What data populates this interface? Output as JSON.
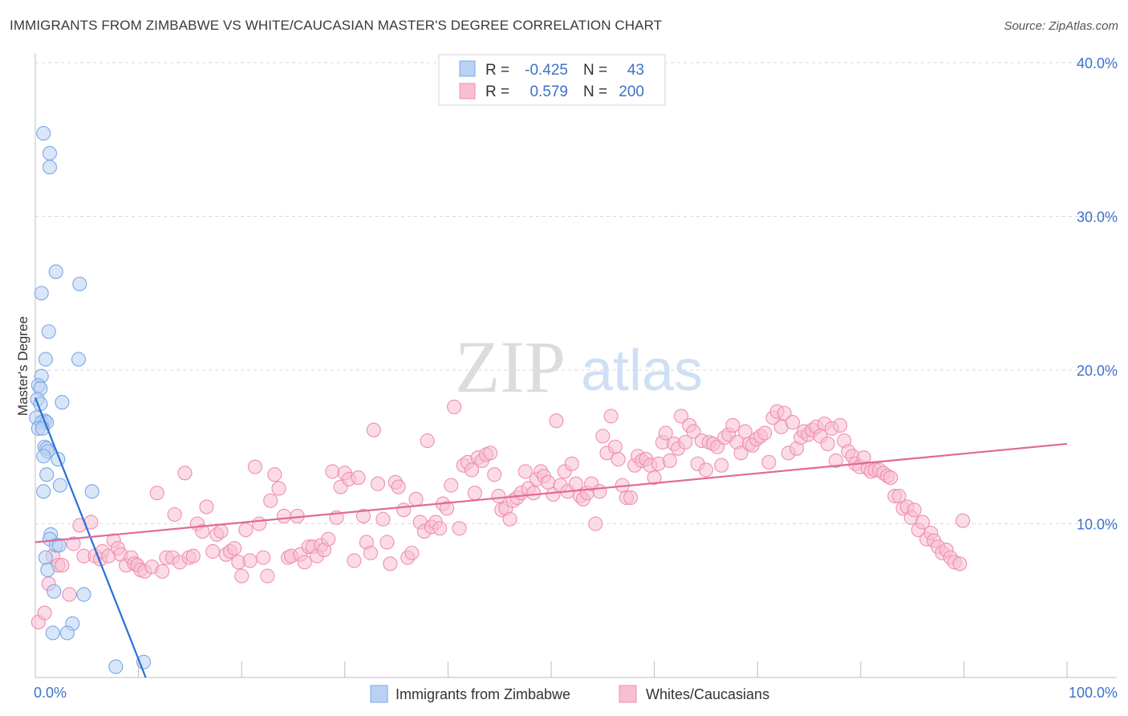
{
  "title": "IMMIGRANTS FROM ZIMBABWE VS WHITE/CAUCASIAN MASTER'S DEGREE CORRELATION CHART",
  "source": "Source: ZipAtlas.com",
  "watermark": {
    "zip": "ZIP",
    "atlas": "atlas"
  },
  "colors": {
    "blue": "#7aa7e8",
    "blue_fill": "#b9d2f3",
    "blue_line": "#2a6fd6",
    "pink": "#ef8fb0",
    "pink_fill": "#f7bfd1",
    "pink_line": "#e0699a",
    "axis_label": "#3c72c9",
    "grid": "#d9d9d9"
  },
  "legend": {
    "r_label": "R =",
    "n_label": "N =",
    "rows": [
      {
        "r": "-0.425",
        "n": "43"
      },
      {
        "r": "0.579",
        "n": "200"
      }
    ]
  },
  "chart_data": {
    "type": "scatter",
    "xlabel": "",
    "ylabel": "Master's Degree",
    "xlim": [
      0,
      100
    ],
    "ylim": [
      0,
      40
    ],
    "x_tick_labels": [
      "0.0%",
      "100.0%"
    ],
    "y_ticks": [
      10,
      20,
      30,
      40
    ],
    "y_tick_labels": [
      "10.0%",
      "20.0%",
      "30.0%",
      "40.0%"
    ],
    "series": [
      {
        "name": "Immigrants from Zimbabwe",
        "color": "blue",
        "r": -0.425,
        "n": 43,
        "trend": {
          "x": [
            0,
            10.7
          ],
          "y": [
            18.2,
            0
          ]
        },
        "points": [
          [
            0.8,
            35.4
          ],
          [
            1.4,
            34.1
          ],
          [
            1.4,
            33.2
          ],
          [
            2.0,
            26.4
          ],
          [
            4.3,
            25.6
          ],
          [
            0.6,
            25.0
          ],
          [
            1.3,
            22.5
          ],
          [
            1.0,
            20.7
          ],
          [
            4.2,
            20.7
          ],
          [
            0.6,
            19.6
          ],
          [
            0.3,
            19.0
          ],
          [
            0.5,
            18.8
          ],
          [
            0.2,
            18.1
          ],
          [
            2.6,
            17.9
          ],
          [
            0.5,
            17.8
          ],
          [
            0.1,
            16.9
          ],
          [
            0.9,
            16.7
          ],
          [
            0.6,
            16.6
          ],
          [
            1.1,
            16.6
          ],
          [
            0.3,
            16.2
          ],
          [
            0.7,
            16.2
          ],
          [
            0.9,
            15.0
          ],
          [
            1.1,
            14.9
          ],
          [
            1.2,
            14.7
          ],
          [
            0.8,
            14.4
          ],
          [
            2.2,
            14.2
          ],
          [
            1.1,
            13.2
          ],
          [
            2.4,
            12.5
          ],
          [
            0.8,
            12.1
          ],
          [
            5.5,
            12.1
          ],
          [
            1.5,
            9.3
          ],
          [
            1.4,
            9.0
          ],
          [
            2.0,
            8.6
          ],
          [
            2.3,
            8.6
          ],
          [
            1.0,
            7.8
          ],
          [
            1.2,
            7.0
          ],
          [
            1.8,
            5.6
          ],
          [
            4.7,
            5.4
          ],
          [
            3.6,
            3.5
          ],
          [
            1.7,
            2.9
          ],
          [
            3.1,
            2.9
          ],
          [
            7.8,
            0.7
          ],
          [
            10.5,
            1.0
          ]
        ]
      },
      {
        "name": "Whites/Caucasians",
        "color": "pink",
        "r": 0.579,
        "n": 200,
        "trend": {
          "x": [
            0,
            100
          ],
          "y": [
            8.8,
            15.2
          ]
        },
        "points": [
          [
            0.3,
            3.6
          ],
          [
            0.9,
            4.2
          ],
          [
            1.3,
            6.1
          ],
          [
            1.7,
            7.9
          ],
          [
            2.2,
            7.3
          ],
          [
            2.6,
            7.3
          ],
          [
            3.3,
            5.4
          ],
          [
            3.7,
            8.7
          ],
          [
            4.3,
            9.9
          ],
          [
            4.7,
            7.9
          ],
          [
            5.4,
            10.1
          ],
          [
            5.8,
            7.9
          ],
          [
            6.3,
            7.7
          ],
          [
            6.5,
            8.2
          ],
          [
            7.1,
            7.9
          ],
          [
            7.6,
            8.9
          ],
          [
            8.0,
            8.4
          ],
          [
            8.3,
            8.0
          ],
          [
            8.8,
            7.3
          ],
          [
            9.3,
            7.8
          ],
          [
            9.6,
            7.4
          ],
          [
            9.9,
            7.3
          ],
          [
            10.2,
            7.0
          ],
          [
            10.6,
            6.9
          ],
          [
            11.3,
            7.2
          ],
          [
            11.8,
            12.0
          ],
          [
            12.3,
            6.9
          ],
          [
            12.7,
            7.8
          ],
          [
            13.3,
            7.8
          ],
          [
            13.5,
            10.6
          ],
          [
            14.0,
            7.5
          ],
          [
            14.5,
            13.3
          ],
          [
            14.9,
            7.8
          ],
          [
            15.3,
            7.9
          ],
          [
            15.7,
            10.0
          ],
          [
            16.2,
            9.5
          ],
          [
            16.6,
            11.1
          ],
          [
            17.2,
            8.2
          ],
          [
            17.6,
            9.3
          ],
          [
            18.0,
            9.5
          ],
          [
            18.5,
            8.0
          ],
          [
            18.9,
            8.2
          ],
          [
            19.3,
            8.4
          ],
          [
            19.7,
            7.5
          ],
          [
            20.0,
            6.6
          ],
          [
            20.4,
            9.6
          ],
          [
            20.8,
            7.6
          ],
          [
            21.3,
            13.7
          ],
          [
            21.7,
            10.0
          ],
          [
            22.1,
            7.8
          ],
          [
            22.5,
            6.6
          ],
          [
            22.8,
            11.5
          ],
          [
            23.2,
            13.2
          ],
          [
            23.6,
            12.3
          ],
          [
            24.1,
            10.5
          ],
          [
            24.5,
            7.8
          ],
          [
            24.8,
            7.9
          ],
          [
            25.4,
            10.5
          ],
          [
            25.7,
            8.0
          ],
          [
            26.1,
            7.5
          ],
          [
            26.5,
            8.5
          ],
          [
            26.9,
            8.5
          ],
          [
            27.3,
            7.9
          ],
          [
            27.7,
            8.6
          ],
          [
            28.0,
            8.3
          ],
          [
            28.4,
            9.0
          ],
          [
            28.8,
            13.4
          ],
          [
            29.2,
            10.4
          ],
          [
            29.6,
            12.4
          ],
          [
            30.0,
            13.3
          ],
          [
            30.4,
            12.9
          ],
          [
            30.9,
            7.6
          ],
          [
            31.3,
            13.0
          ],
          [
            31.8,
            10.5
          ],
          [
            32.1,
            8.8
          ],
          [
            32.5,
            8.1
          ],
          [
            32.8,
            16.1
          ],
          [
            33.2,
            12.6
          ],
          [
            33.7,
            10.3
          ],
          [
            34.1,
            8.8
          ],
          [
            34.4,
            7.4
          ],
          [
            34.9,
            12.7
          ],
          [
            35.2,
            12.4
          ],
          [
            35.7,
            10.9
          ],
          [
            36.1,
            7.8
          ],
          [
            36.5,
            8.1
          ],
          [
            36.9,
            11.6
          ],
          [
            37.3,
            10.1
          ],
          [
            37.7,
            9.5
          ],
          [
            38.0,
            15.4
          ],
          [
            38.4,
            9.8
          ],
          [
            38.8,
            10.1
          ],
          [
            39.2,
            9.7
          ],
          [
            39.5,
            11.3
          ],
          [
            39.9,
            11.0
          ],
          [
            40.3,
            12.5
          ],
          [
            40.6,
            17.6
          ],
          [
            41.1,
            9.7
          ],
          [
            41.5,
            13.8
          ],
          [
            41.9,
            14.0
          ],
          [
            42.3,
            13.5
          ],
          [
            42.6,
            12.0
          ],
          [
            42.9,
            14.3
          ],
          [
            43.3,
            14.1
          ],
          [
            43.7,
            14.5
          ],
          [
            44.1,
            14.6
          ],
          [
            44.5,
            13.2
          ],
          [
            44.9,
            11.8
          ],
          [
            45.2,
            10.9
          ],
          [
            45.6,
            11.0
          ],
          [
            46.0,
            10.3
          ],
          [
            46.3,
            11.5
          ],
          [
            46.7,
            11.7
          ],
          [
            47.1,
            12.0
          ],
          [
            47.5,
            13.4
          ],
          [
            47.8,
            12.3
          ],
          [
            48.3,
            12.0
          ],
          [
            48.6,
            12.9
          ],
          [
            49.0,
            13.4
          ],
          [
            49.3,
            13.1
          ],
          [
            49.7,
            12.7
          ],
          [
            50.2,
            11.9
          ],
          [
            50.5,
            16.7
          ],
          [
            50.9,
            12.5
          ],
          [
            51.3,
            13.4
          ],
          [
            51.6,
            12.1
          ],
          [
            52.0,
            13.9
          ],
          [
            52.4,
            12.6
          ],
          [
            52.8,
            11.8
          ],
          [
            53.1,
            11.6
          ],
          [
            53.5,
            12.0
          ],
          [
            53.9,
            12.6
          ],
          [
            54.3,
            10.0
          ],
          [
            54.7,
            12.1
          ],
          [
            55.0,
            15.7
          ],
          [
            55.4,
            14.6
          ],
          [
            55.8,
            17.0
          ],
          [
            56.2,
            15.0
          ],
          [
            56.5,
            14.2
          ],
          [
            56.9,
            12.5
          ],
          [
            57.3,
            11.7
          ],
          [
            57.7,
            11.7
          ],
          [
            58.1,
            13.8
          ],
          [
            58.4,
            14.4
          ],
          [
            58.8,
            14.1
          ],
          [
            59.2,
            14.2
          ],
          [
            59.6,
            13.8
          ],
          [
            60.0,
            13.0
          ],
          [
            60.4,
            13.9
          ],
          [
            60.8,
            15.3
          ],
          [
            61.1,
            15.9
          ],
          [
            61.5,
            14.1
          ],
          [
            61.9,
            15.2
          ],
          [
            62.3,
            14.9
          ],
          [
            62.6,
            17.0
          ],
          [
            63.0,
            15.3
          ],
          [
            63.4,
            16.4
          ],
          [
            63.8,
            16.0
          ],
          [
            64.2,
            13.9
          ],
          [
            64.6,
            15.4
          ],
          [
            65.0,
            13.5
          ],
          [
            65.3,
            15.3
          ],
          [
            65.7,
            15.2
          ],
          [
            66.1,
            15.0
          ],
          [
            66.5,
            13.8
          ],
          [
            66.8,
            15.6
          ],
          [
            67.2,
            15.8
          ],
          [
            67.6,
            16.4
          ],
          [
            68.0,
            15.3
          ],
          [
            68.4,
            14.6
          ],
          [
            68.8,
            16.0
          ],
          [
            69.2,
            15.2
          ],
          [
            69.5,
            15.1
          ],
          [
            69.9,
            15.5
          ],
          [
            70.3,
            15.7
          ],
          [
            70.7,
            15.9
          ],
          [
            71.1,
            14.0
          ],
          [
            71.5,
            16.9
          ],
          [
            71.9,
            17.3
          ],
          [
            72.3,
            16.3
          ],
          [
            72.6,
            17.2
          ],
          [
            73.0,
            14.6
          ],
          [
            73.4,
            16.6
          ],
          [
            73.8,
            14.9
          ],
          [
            74.2,
            15.6
          ],
          [
            74.5,
            16.0
          ],
          [
            74.9,
            15.8
          ],
          [
            75.3,
            16.1
          ],
          [
            75.7,
            16.3
          ],
          [
            76.1,
            15.7
          ],
          [
            76.5,
            16.5
          ],
          [
            76.8,
            15.2
          ],
          [
            77.2,
            16.2
          ],
          [
            77.6,
            14.1
          ],
          [
            78.0,
            16.4
          ],
          [
            78.4,
            15.4
          ],
          [
            78.8,
            14.7
          ],
          [
            79.2,
            14.4
          ],
          [
            79.5,
            13.9
          ],
          [
            79.9,
            13.7
          ],
          [
            80.3,
            14.3
          ],
          [
            80.7,
            13.6
          ],
          [
            81.0,
            13.4
          ],
          [
            81.4,
            13.5
          ],
          [
            81.8,
            13.5
          ],
          [
            82.2,
            13.3
          ],
          [
            82.6,
            13.1
          ],
          [
            82.9,
            13.0
          ],
          [
            83.3,
            11.8
          ],
          [
            83.7,
            11.8
          ],
          [
            84.1,
            11.0
          ],
          [
            84.5,
            11.1
          ],
          [
            84.9,
            10.4
          ],
          [
            85.2,
            10.9
          ],
          [
            85.6,
            9.6
          ],
          [
            86.0,
            10.1
          ],
          [
            86.4,
            9.0
          ],
          [
            86.8,
            9.4
          ],
          [
            87.1,
            8.9
          ],
          [
            87.5,
            8.5
          ],
          [
            87.9,
            8.1
          ],
          [
            88.3,
            8.3
          ],
          [
            88.7,
            7.8
          ],
          [
            89.1,
            7.5
          ],
          [
            89.6,
            7.4
          ],
          [
            89.9,
            10.2
          ]
        ]
      }
    ]
  }
}
